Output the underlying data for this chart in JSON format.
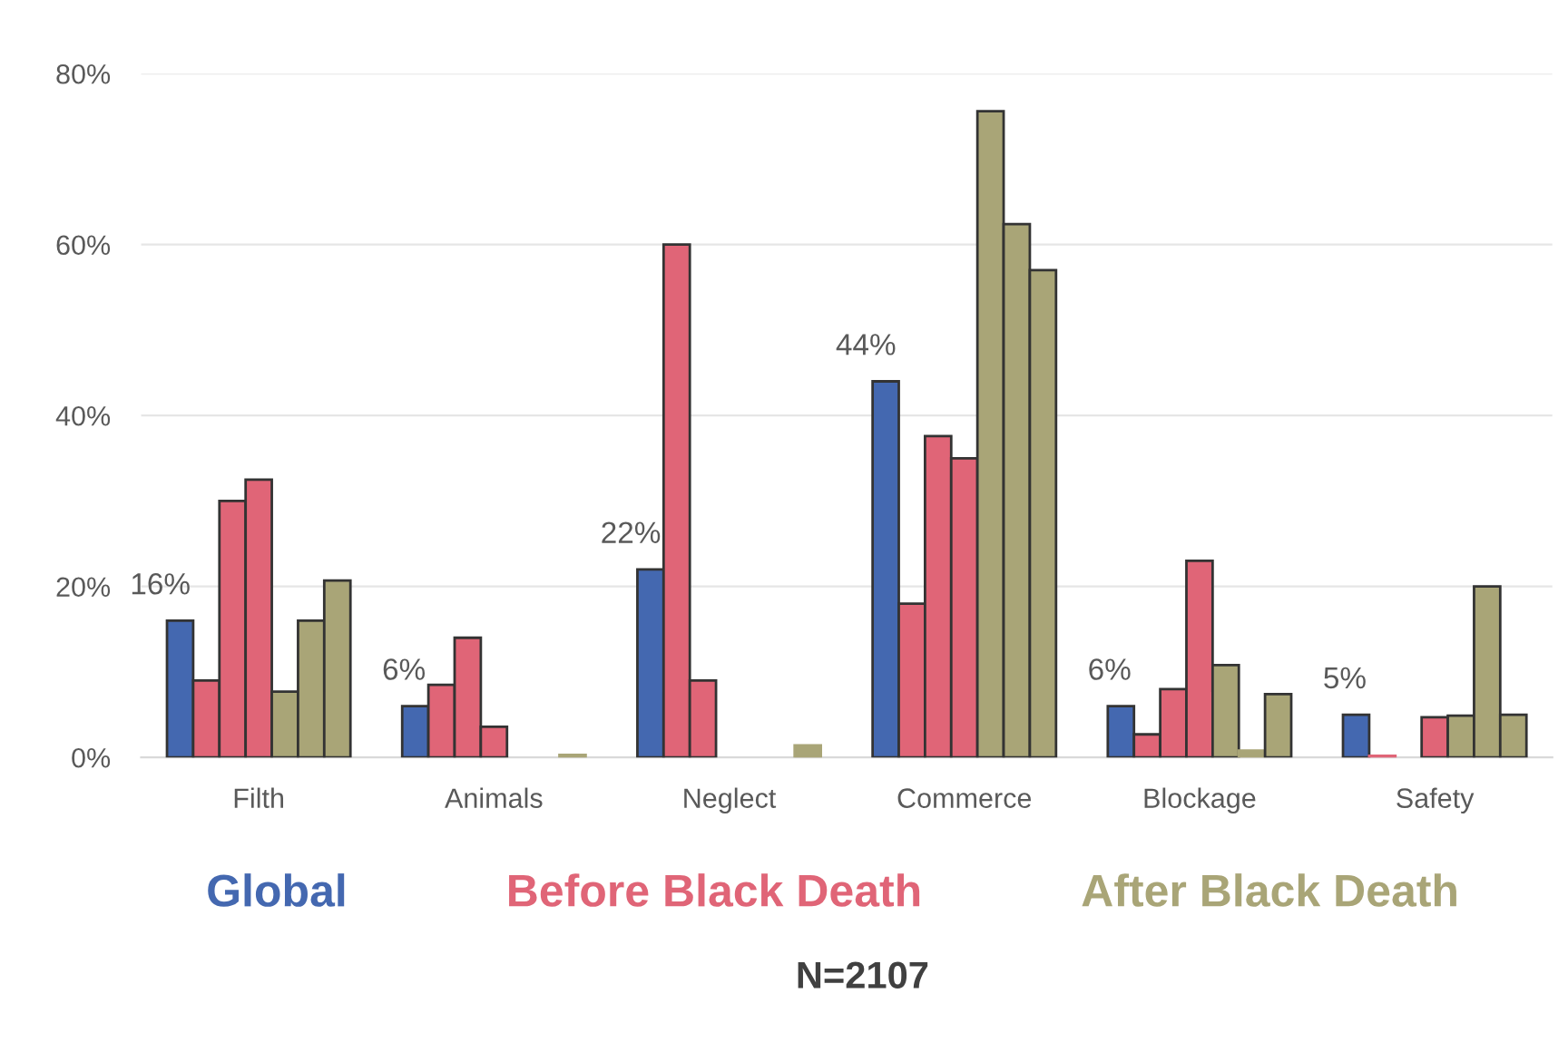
{
  "chart_data": {
    "type": "bar",
    "categories": [
      "Filth",
      "Animals",
      "Neglect",
      "Commerce",
      "Blockage",
      "Safety"
    ],
    "series": [
      {
        "name": "Global",
        "color": "#4468b0",
        "values": [
          16,
          6,
          22,
          44,
          6,
          5
        ],
        "value_labels": [
          "16%",
          "6%",
          "22%",
          "44%",
          "6%",
          "5%"
        ]
      },
      {
        "name": "Before Black Death",
        "color": "#e06577",
        "values": [
          9,
          8.5,
          60,
          18,
          2.7,
          0.2
        ]
      },
      {
        "color": "#e06577",
        "values": [
          30,
          14,
          9,
          37.6,
          8,
          null
        ]
      },
      {
        "color": "#e06577",
        "values": [
          32.5,
          3.6,
          null,
          35,
          23,
          4.7
        ]
      },
      {
        "name": "After Black Death",
        "color": "#a9a577",
        "values": [
          7.7,
          null,
          null,
          75.6,
          10.8,
          4.9
        ]
      },
      {
        "color": "#a9a577",
        "values": [
          16,
          null,
          null,
          62.4,
          0.8,
          20
        ]
      },
      {
        "color": "#a9a577",
        "values": [
          20.7,
          0.3,
          1.4,
          57,
          7.4,
          5
        ]
      }
    ],
    "ylim": [
      0,
      80
    ],
    "yticks": [
      {
        "value": 0,
        "label": "0%"
      },
      {
        "value": 20,
        "label": "20%"
      },
      {
        "value": 40,
        "label": "40%"
      },
      {
        "value": 60,
        "label": "60%"
      },
      {
        "value": 80,
        "label": "80%"
      }
    ],
    "grid": "y",
    "legend": "bottom",
    "annotations": [
      "N=2107"
    ]
  }
}
